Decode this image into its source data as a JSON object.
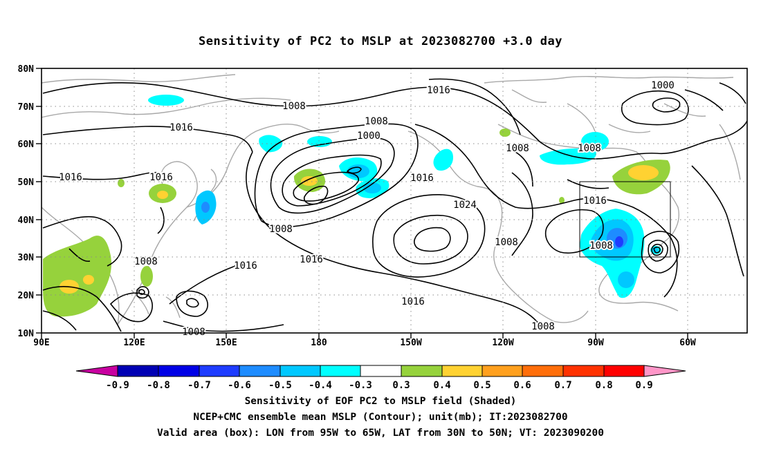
{
  "title": "Sensitivity of PC2 to MSLP at 2023082700 +3.0 day",
  "lat_labels": [
    "80N",
    "70N",
    "60N",
    "50N",
    "40N",
    "30N",
    "20N",
    "10N"
  ],
  "lon_labels": [
    "90E",
    "120E",
    "150E",
    "180",
    "150W",
    "120W",
    "90W",
    "60W"
  ],
  "contour_labels": [
    {
      "text": "1008"
    },
    {
      "text": "1016"
    },
    {
      "text": "1000"
    },
    {
      "text": "1016"
    },
    {
      "text": "1008"
    },
    {
      "text": "1008"
    },
    {
      "text": "1016"
    },
    {
      "text": "1016"
    },
    {
      "text": "1016"
    },
    {
      "text": "1008"
    },
    {
      "text": "1008"
    },
    {
      "text": "1016"
    },
    {
      "text": "1024"
    },
    {
      "text": "1016"
    },
    {
      "text": "1016"
    },
    {
      "text": "1008"
    },
    {
      "text": "1008"
    },
    {
      "text": "1008"
    },
    {
      "text": "1016"
    },
    {
      "text": "1008"
    },
    {
      "text": "1000"
    },
    {
      "text": "1008"
    }
  ],
  "colorbar": {
    "labels": [
      "-0.9",
      "-0.8",
      "-0.7",
      "-0.6",
      "-0.5",
      "-0.4",
      "-0.3",
      "0.3",
      "0.4",
      "0.5",
      "0.6",
      "0.7",
      "0.8",
      "0.9"
    ],
    "colors": [
      "#0000b4",
      "#0000e6",
      "#1e3cff",
      "#1e8cff",
      "#00c8ff",
      "#00ffff",
      "#ffffff",
      "#96d23c",
      "#ffd232",
      "#ffa01e",
      "#ff6e0a",
      "#ff3200",
      "#ff0000"
    ],
    "low_cap_color": "#c800a0",
    "high_cap_color": "#ff96c8"
  },
  "valid_box": {
    "lon_west": "95W",
    "lon_east": "65W",
    "lat_south": "30N",
    "lat_north": "50N"
  },
  "footer": {
    "line1": "Sensitivity of EOF PC2 to MSLP field (Shaded)",
    "line2": "NCEP+CMC ensemble mean MSLP (Contour); unit(mb); IT:2023082700",
    "line3": "Valid area (box): LON from 95W to 65W, LAT from 30N to 50N; VT: 2023090200"
  }
}
